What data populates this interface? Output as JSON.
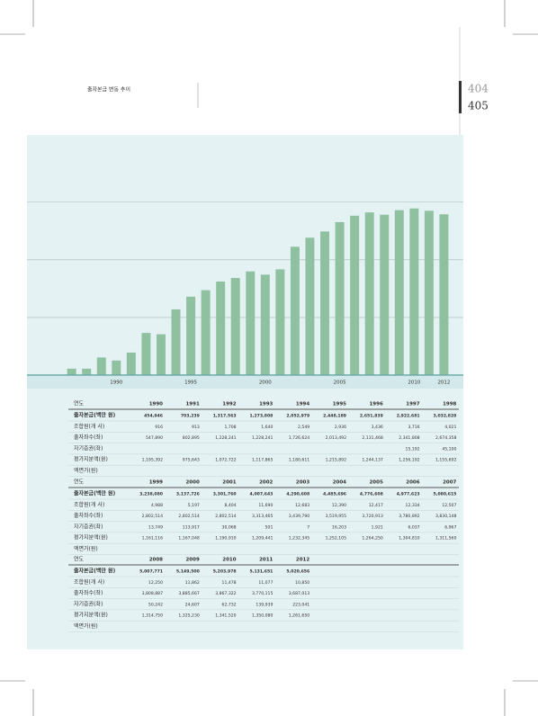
{
  "page_header": {
    "title": "출자본금 변동 추이",
    "page_left": "404",
    "page_right": "405"
  },
  "chart_data": {
    "type": "bar",
    "x": [
      1987,
      1988,
      1989,
      1990,
      1991,
      1992,
      1993,
      1994,
      1995,
      1996,
      1997,
      1998,
      1999,
      2000,
      2001,
      2002,
      2003,
      2004,
      2005,
      2006,
      2007,
      2008,
      2009,
      2010,
      2011,
      2012
    ],
    "values": [
      200000,
      200000,
      550000,
      454946,
      703239,
      1317563,
      1273808,
      2052979,
      2448189,
      2651839,
      2922681,
      3032828,
      3238080,
      3137726,
      3301760,
      4007643,
      4290608,
      4485696,
      4776608,
      4977623,
      5080615,
      5007771,
      5149500,
      5203978,
      5131651,
      5020656
    ],
    "color": "#8fc1a1",
    "xlim": [
      1984,
      2013
    ],
    "xticks": [
      1990,
      1995,
      2000,
      2005,
      2010,
      2012
    ],
    "ylim": [
      0,
      7500000
    ],
    "yticks": [
      0,
      1800000,
      3600000,
      5400000
    ],
    "grid": true
  },
  "tables": [
    {
      "header": [
        "연도",
        "1990",
        "1991",
        "1992",
        "1993",
        "1994",
        "1995",
        "1996",
        "1997",
        "1998"
      ],
      "rows": [
        [
          "출자본금(백만 원)",
          "454,946",
          "703,239",
          "1,317,563",
          "1,273,808",
          "2,052,979",
          "2,448,189",
          "2,651,839",
          "2,922,681",
          "3,032,828"
        ],
        [
          "조합원(개 사)",
          "916",
          "913",
          "1,708",
          "1,640",
          "2,549",
          "2,936",
          "3,436",
          "3,716",
          "4,021"
        ],
        [
          "출자좌수(좌)",
          "547,890",
          "802,895",
          "1,228,241",
          "1,228,241",
          "1,726,624",
          "2,013,492",
          "2,131,468",
          "2,341,808",
          "2,674,358"
        ],
        [
          "자기증권(좌)",
          null,
          null,
          null,
          null,
          null,
          null,
          null,
          "15,192",
          "45,100"
        ],
        [
          "평가지분액(원)",
          "1,195,392",
          "975,643",
          "1,072,722",
          "1,117,865",
          "1,180,611",
          "1,215,892",
          "1,244,137",
          "1,256,192",
          "1,155,692"
        ],
        [
          "액면가(원)",
          null,
          null,
          null,
          null,
          null,
          null,
          null,
          null,
          null
        ]
      ]
    },
    {
      "header": [
        "연도",
        "1999",
        "2000",
        "2001",
        "2002",
        "2003",
        "2004",
        "2005",
        "2006",
        "2007"
      ],
      "rows": [
        [
          "출자본금(백만 원)",
          "3,238,080",
          "3,137,726",
          "3,301,760",
          "4,007,643",
          "4,290,608",
          "4,485,696",
          "4,776,608",
          "4,977,623",
          "5,080,615"
        ],
        [
          "조합원(개 사)",
          "4,988",
          "5,197",
          "8,404",
          "11,690",
          "12,683",
          "12,390",
          "12,417",
          "12,334",
          "12,507"
        ],
        [
          "출자좌수(좌)",
          "2,802,514",
          "2,802,514",
          "2,802,514",
          "3,313,465",
          "3,439,790",
          "3,519,955",
          "3,720,913",
          "3,780,892",
          "3,830,148"
        ],
        [
          "자기증권(좌)",
          "13,749",
          "113,917",
          "30,068",
          "501",
          "7",
          "16,203",
          "1,921",
          "6,037",
          "6,967"
        ],
        [
          "평가지분액(원)",
          "1,161,116",
          "1,167,048",
          "1,190,910",
          "1,209,441",
          "1,232,345",
          "1,252,105",
          "1,264,250",
          "1,304,810",
          "1,311,560"
        ],
        [
          "액면가(원)",
          null,
          null,
          null,
          null,
          null,
          null,
          null,
          null,
          null
        ]
      ]
    },
    {
      "header": [
        "연도",
        "2008",
        "2009",
        "2010",
        "2011",
        "2012"
      ],
      "rows": [
        [
          "출자본금(백만 원)",
          "5,007,771",
          "5,149,500",
          "5,203,978",
          "5,131,651",
          "5,020,656"
        ],
        [
          "조합원(개 사)",
          "12,250",
          "11,862",
          "11,478",
          "11,077",
          "10,850"
        ],
        [
          "출자좌수(좌)",
          "3,808,887",
          "3,885,667",
          "3,867,322",
          "3,770,115",
          "3,687,013"
        ],
        [
          "자기증권(좌)",
          "50,242",
          "24,607",
          "62,732",
          "139,939",
          "223,041"
        ],
        [
          "평가지분액(원)",
          "1,314,750",
          "1,325,230",
          "1,341,520",
          "1,350,080",
          "1,261,650"
        ],
        [
          "액면가(원)",
          null,
          null,
          null,
          null,
          null
        ]
      ]
    }
  ]
}
